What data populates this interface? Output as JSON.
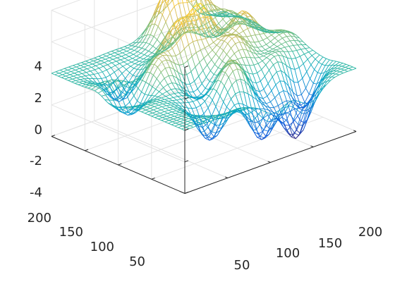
{
  "chart_data": {
    "type": "surface",
    "title": "",
    "xlabel": "",
    "ylabel": "",
    "zlabel": "",
    "xlim": [
      0,
      200
    ],
    "ylim": [
      0,
      200
    ],
    "zlim": [
      -4,
      4
    ],
    "x_ticks": [
      "50",
      "100",
      "150",
      "200"
    ],
    "y_ticks": [
      "50",
      "100",
      "150",
      "200"
    ],
    "z_ticks": [
      "4",
      "2",
      "0",
      "-2",
      "-4"
    ],
    "grid": true,
    "colormap": "parula",
    "colors": [
      "#352a87",
      "#0f5cdd",
      "#1481d6",
      "#06a4ca",
      "#2eb7a4",
      "#87bf77",
      "#d1bb59",
      "#fec832",
      "#f9fb0e"
    ],
    "mesh_step": 5,
    "peaks": [
      {
        "x": 150,
        "y": 185,
        "z": 3.7
      },
      {
        "x": 122,
        "y": 180,
        "z": 3.2
      },
      {
        "x": 118,
        "y": 130,
        "z": 3.0
      },
      {
        "x": 90,
        "y": 125,
        "z": 2.7
      },
      {
        "x": 160,
        "y": 120,
        "z": 2.2
      },
      {
        "x": 128,
        "y": 95,
        "z": 2.0
      },
      {
        "x": 60,
        "y": 110,
        "z": 1.6
      },
      {
        "x": 100,
        "y": 60,
        "z": 1.8
      },
      {
        "x": 160,
        "y": 60,
        "z": 1.4
      },
      {
        "x": 175,
        "y": 160,
        "z": 1.2
      },
      {
        "x": 25,
        "y": 130,
        "z": 1.0
      },
      {
        "x": 185,
        "y": 95,
        "z": 1.0
      }
    ],
    "troughs": [
      {
        "x": 145,
        "y": 20,
        "z": -3.6
      },
      {
        "x": 105,
        "y": 20,
        "z": -3.0
      },
      {
        "x": 170,
        "y": 45,
        "z": -3.0
      },
      {
        "x": 60,
        "y": 40,
        "z": -2.5
      },
      {
        "x": 40,
        "y": 150,
        "z": -1.8
      },
      {
        "x": 20,
        "y": 110,
        "z": -1.5
      },
      {
        "x": 80,
        "y": 80,
        "z": -1.3
      },
      {
        "x": 130,
        "y": 50,
        "z": -1.4
      }
    ]
  }
}
